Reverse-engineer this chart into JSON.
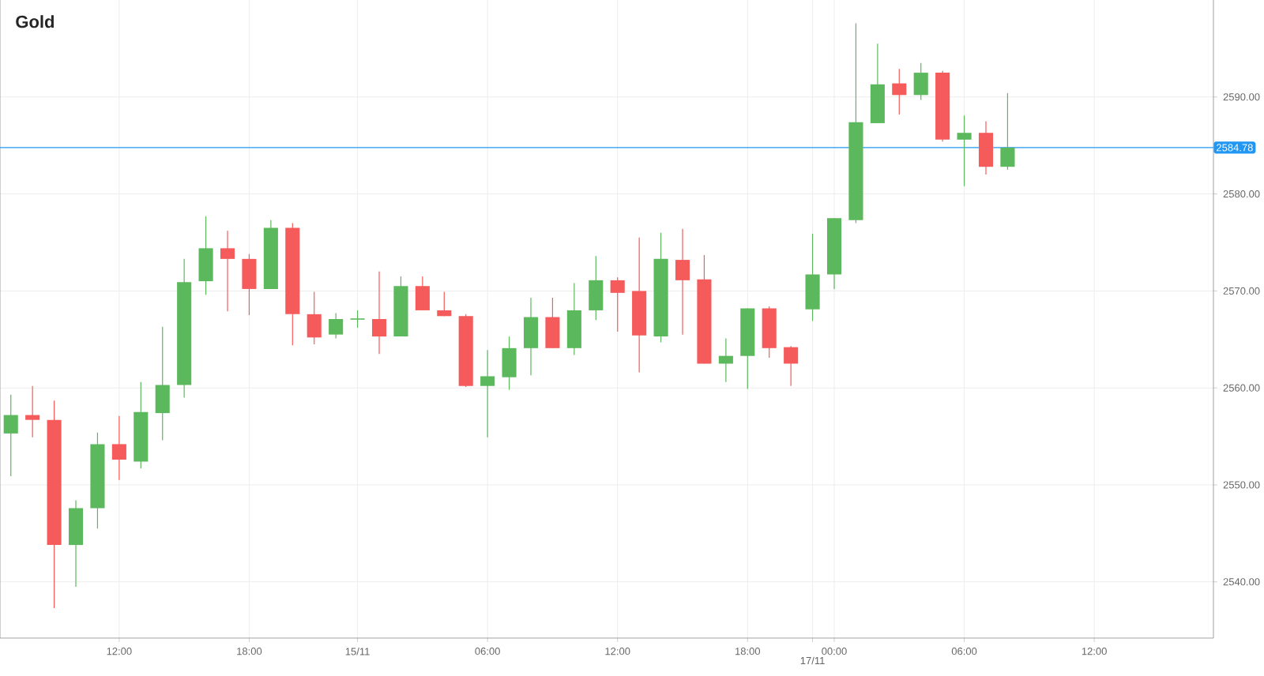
{
  "chart_data": {
    "type": "candlestick",
    "title": "Gold",
    "categories": [
      null,
      null,
      null,
      null,
      null,
      "12:00",
      null,
      null,
      null,
      null,
      null,
      "18:00",
      null,
      null,
      null,
      null,
      "15/11",
      null,
      null,
      null,
      null,
      null,
      "06:00",
      null,
      null,
      null,
      null,
      null,
      "12:00",
      null,
      null,
      null,
      null,
      null,
      "18:00",
      null,
      null,
      "17/11",
      "00:00",
      null,
      null,
      null,
      null,
      null,
      "06:00",
      null,
      null,
      null,
      null,
      null,
      "12:00",
      null,
      null,
      null,
      null,
      null
    ],
    "ohlc": [
      [
        2555.3,
        2559.3,
        2550.9,
        2557.2
      ],
      [
        2557.2,
        2560.2,
        2554.9,
        2556.7
      ],
      [
        2556.7,
        2558.7,
        2537.3,
        2543.8
      ],
      [
        2543.8,
        2548.4,
        2539.5,
        2547.6
      ],
      [
        2547.6,
        2555.4,
        2545.5,
        2554.2
      ],
      [
        2554.2,
        2557.1,
        2550.5,
        2552.6
      ],
      [
        2552.4,
        2560.6,
        2551.7,
        2557.5
      ],
      [
        2557.4,
        2566.3,
        2554.6,
        2560.3
      ],
      [
        2560.3,
        2573.3,
        2559.0,
        2570.9
      ],
      [
        2571.0,
        2577.7,
        2569.6,
        2574.4
      ],
      [
        2574.4,
        2576.2,
        2567.9,
        2573.3
      ],
      [
        2573.3,
        2573.8,
        2567.5,
        2570.2
      ],
      [
        2570.2,
        2577.3,
        2570.2,
        2576.5
      ],
      [
        2576.5,
        2577.0,
        2564.4,
        2567.6
      ],
      [
        2567.6,
        2569.9,
        2564.5,
        2565.2
      ],
      [
        2565.5,
        2567.7,
        2565.1,
        2567.1
      ],
      [
        2567.1,
        2568.0,
        2566.2,
        2567.1
      ],
      [
        2567.1,
        2572.0,
        2563.5,
        2565.3
      ],
      [
        2565.3,
        2571.5,
        2565.3,
        2570.5
      ],
      [
        2570.5,
        2571.5,
        2568.0,
        2568.0
      ],
      [
        2568.0,
        2569.9,
        2567.4,
        2567.4
      ],
      [
        2567.4,
        2567.6,
        2560.1,
        2560.2
      ],
      [
        2560.2,
        2563.9,
        2554.9,
        2561.2
      ],
      [
        2561.1,
        2565.3,
        2559.8,
        2564.1
      ],
      [
        2564.1,
        2569.3,
        2561.3,
        2567.3
      ],
      [
        2567.3,
        2569.3,
        2564.1,
        2564.1
      ],
      [
        2564.1,
        2570.8,
        2563.4,
        2568.0
      ],
      [
        2568.0,
        2573.6,
        2567.0,
        2571.1
      ],
      [
        2571.1,
        2571.4,
        2565.8,
        2569.8
      ],
      [
        2570.0,
        2575.5,
        2561.6,
        2565.4
      ],
      [
        2565.3,
        2576.0,
        2564.7,
        2573.3
      ],
      [
        2573.2,
        2576.4,
        2565.5,
        2571.1
      ],
      [
        2571.2,
        2573.7,
        2562.5,
        2562.5
      ],
      [
        2562.5,
        2565.1,
        2560.6,
        2563.3
      ],
      [
        2563.3,
        2568.2,
        2559.9,
        2568.2
      ],
      [
        2568.2,
        2568.4,
        2563.1,
        2564.1
      ],
      [
        2564.2,
        2564.3,
        2560.2,
        2562.5
      ],
      [
        2568.1,
        2575.9,
        2566.9,
        2571.7
      ],
      [
        2571.7,
        2577.5,
        2570.2,
        2577.5
      ],
      [
        2577.3,
        2597.6,
        2577.0,
        2587.4
      ],
      [
        2587.3,
        2595.5,
        2587.3,
        2591.3
      ],
      [
        2591.4,
        2592.9,
        2588.2,
        2590.2
      ],
      [
        2590.2,
        2593.5,
        2589.7,
        2592.5
      ],
      [
        2592.5,
        2592.7,
        2585.4,
        2585.6
      ],
      [
        2585.6,
        2588.1,
        2580.8,
        2586.3
      ],
      [
        2586.3,
        2587.5,
        2582.0,
        2582.8
      ],
      [
        2582.8,
        2590.4,
        2582.5,
        2584.78
      ],
      null,
      null,
      null,
      null,
      null,
      null,
      null,
      null,
      null
    ],
    "colors": [
      "#5cb85c",
      "#f55b5b",
      "#f55b5b",
      "#5cb85c",
      "#5cb85c",
      "#f55b5b",
      "#5cb85c",
      "#5cb85c",
      "#5cb85c",
      "#5cb85c",
      "#f55b5b",
      "#f55b5b",
      "#5cb85c",
      "#f55b5b",
      "#f55b5b",
      "#5cb85c",
      "#5cb85c",
      "#f55b5b",
      "#5cb85c",
      "#f55b5b",
      "#f55b5b",
      "#f55b5b",
      "#5cb85c",
      "#5cb85c",
      "#5cb85c",
      "#f55b5b",
      "#5cb85c",
      "#5cb85c",
      "#f55b5b",
      "#f55b5b",
      "#5cb85c",
      "#f55b5b",
      "#f55b5b",
      "#5cb85c",
      "#5cb85c",
      "#f55b5b",
      "#f55b5b",
      "#5cb85c",
      "#5cb85c",
      "#5cb85c",
      "#5cb85c",
      "#f55b5b",
      "#5cb85c",
      "#f55b5b",
      "#5cb85c",
      "#f55b5b",
      "#5cb85c",
      null,
      null,
      null,
      null,
      null,
      null,
      null,
      null,
      null
    ],
    "ylim": [
      2534.2,
      2600.0
    ],
    "yticks": [
      {
        "value": 2540,
        "label": "2540.00"
      },
      {
        "value": 2550,
        "label": "2550.00"
      },
      {
        "value": 2560,
        "label": "2560.00"
      },
      {
        "value": 2570,
        "label": "2570.00"
      },
      {
        "value": 2580,
        "label": "2580.00"
      },
      {
        "value": 2590,
        "label": "2590.00"
      }
    ],
    "ref_lines": [
      {
        "axis": "y",
        "value": 2584.78,
        "label": "2584.78",
        "color": "#2196f3"
      }
    ],
    "grid": true
  }
}
